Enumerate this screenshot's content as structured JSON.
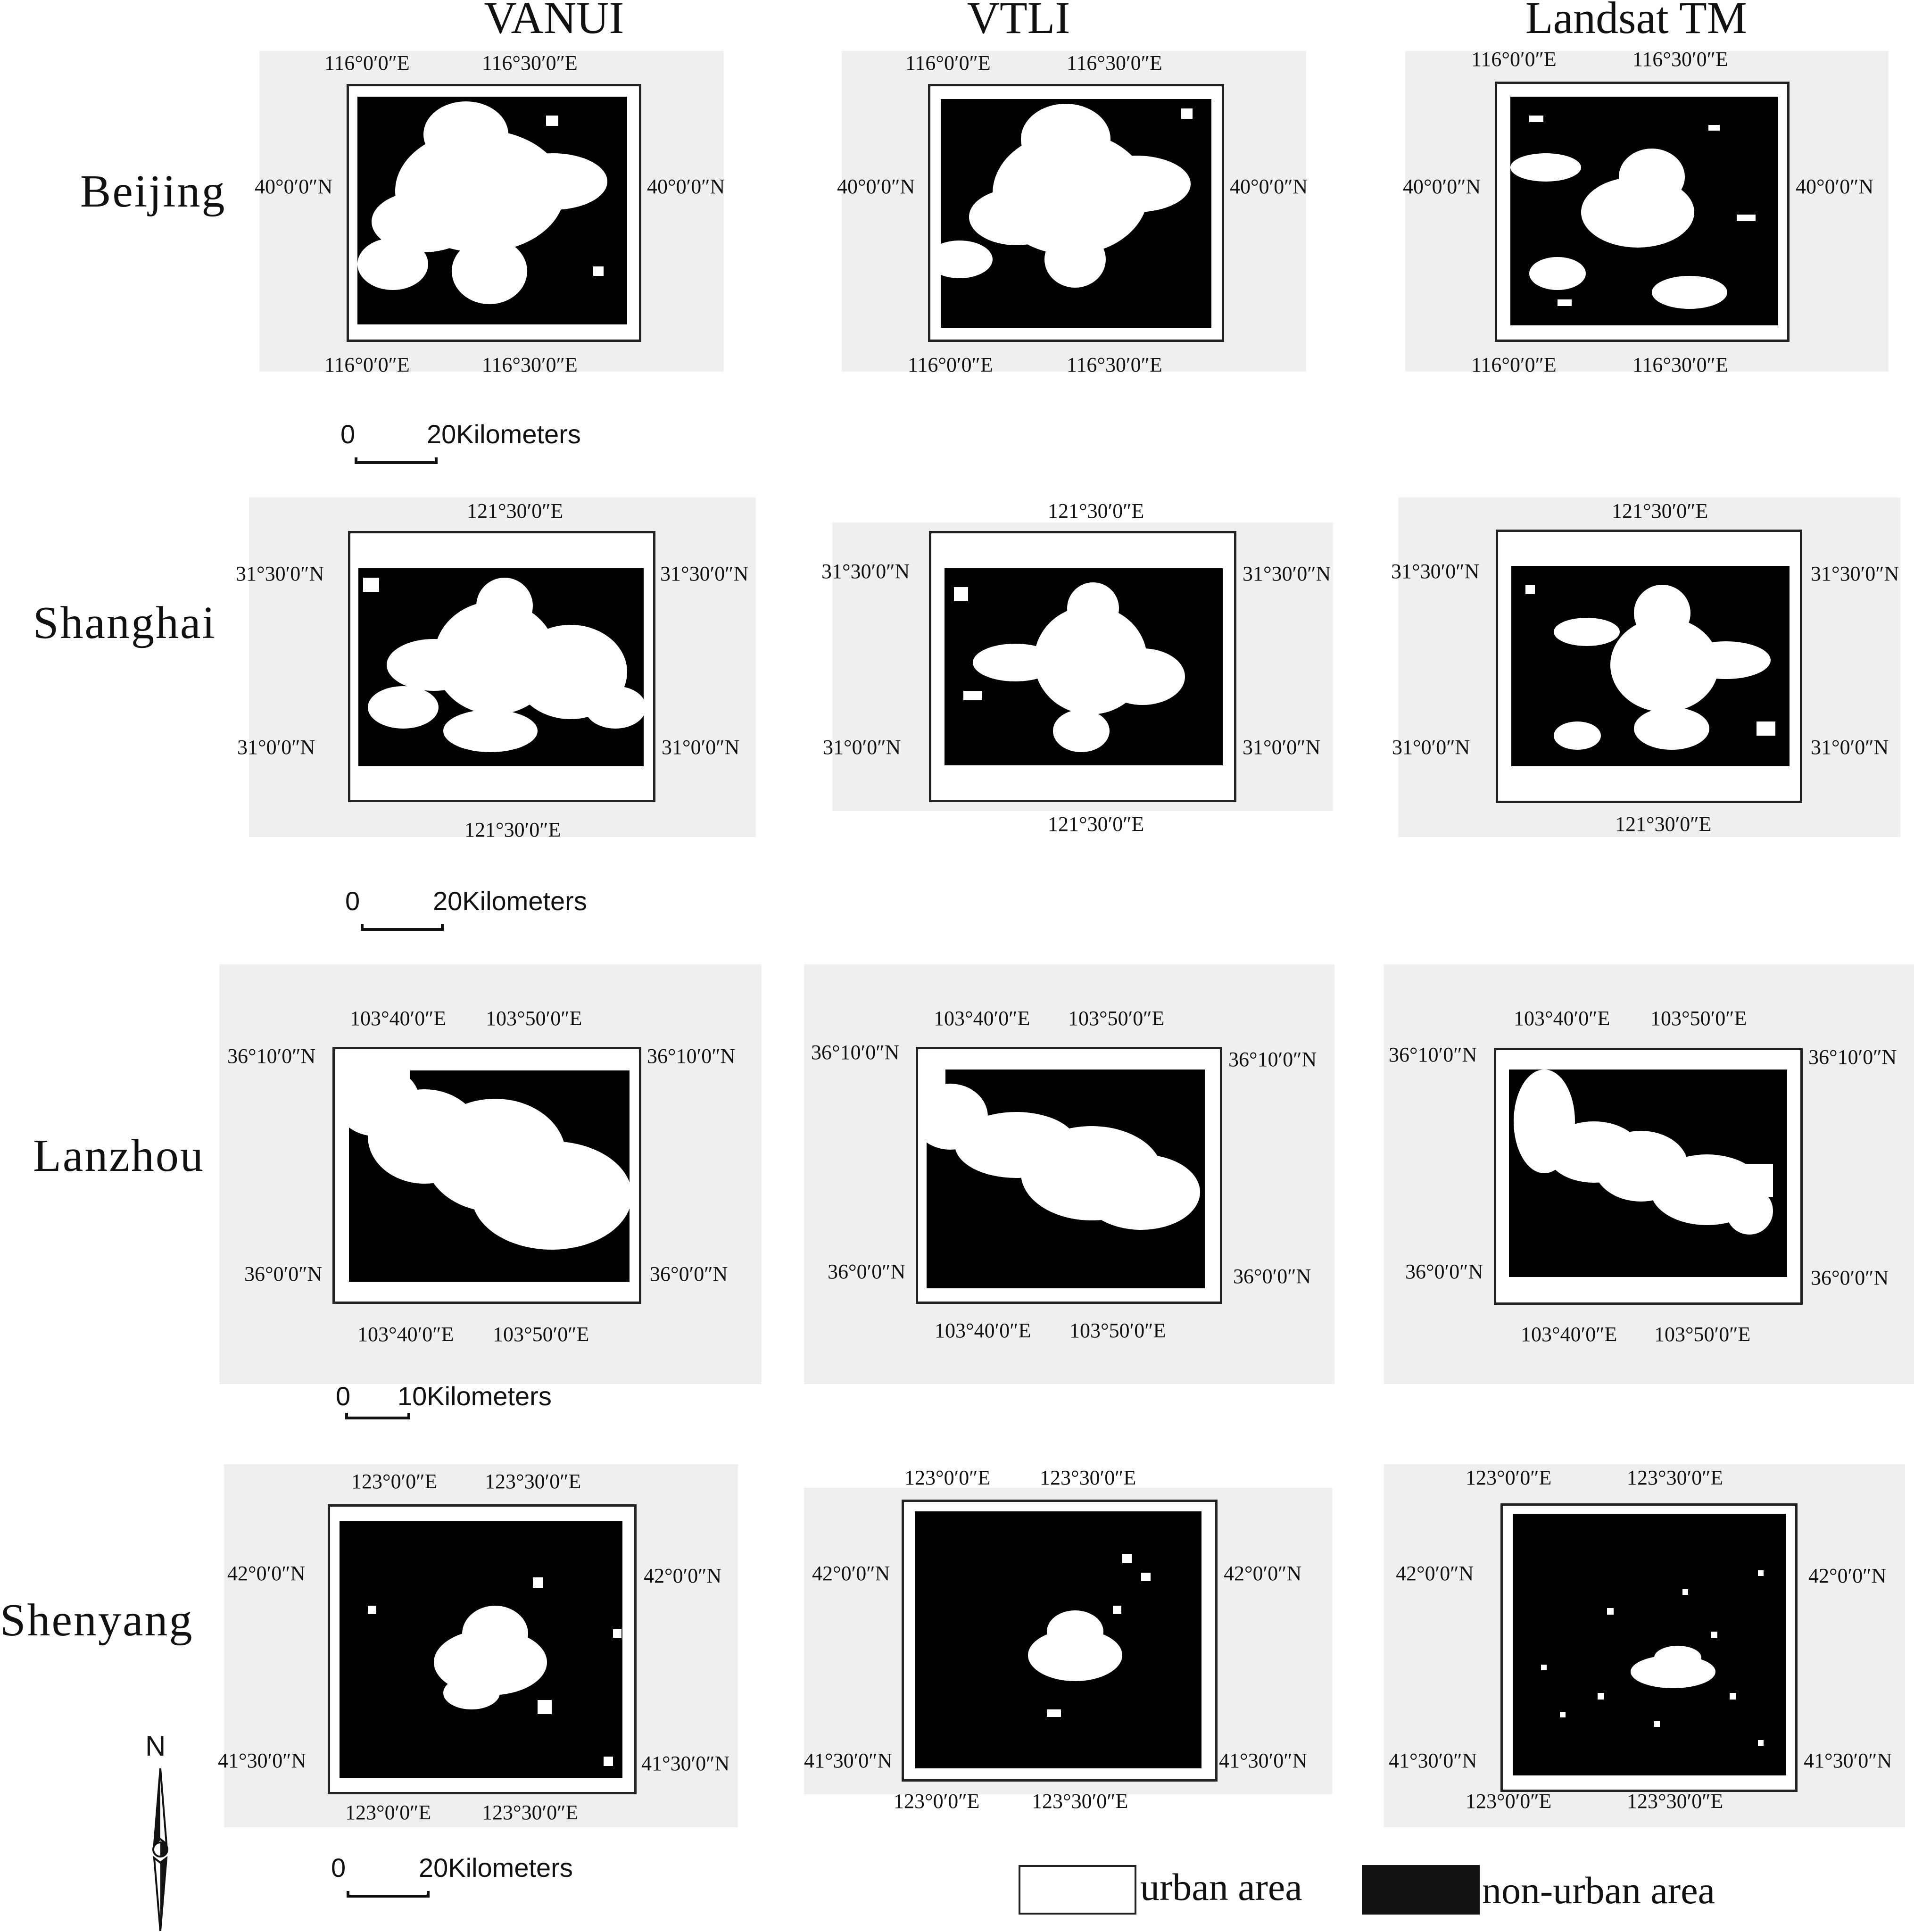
{
  "columns": [
    "VANUI",
    "VTLI",
    "Landsat TM"
  ],
  "cities": [
    {
      "name": "Beijing",
      "top_lon": [
        "116°0′0″E",
        "116°30′0″E"
      ],
      "bottom_lon": [
        "116°0′0″E",
        "116°30′0″E"
      ],
      "lat": [
        "40°0′0″N"
      ]
    },
    {
      "name": "Shanghai",
      "top_lon": [
        "121°30′0″E"
      ],
      "bottom_lon": [
        "121°30′0″E"
      ],
      "lat": [
        "31°30′0″N",
        "31°0′0″N"
      ]
    },
    {
      "name": "Lanzhou",
      "top_lon": [
        "103°40′0″E",
        "103°50′0″E"
      ],
      "bottom_lon": [
        "103°40′0″E",
        "103°50′0″E"
      ],
      "lat": [
        "36°10′0″N",
        "36°0′0″N"
      ]
    },
    {
      "name": "Shenyang",
      "top_lon": [
        "123°0′0″E",
        "123°30′0″E"
      ],
      "bottom_lon": [
        "123°0′0″E",
        "123°30′0″E"
      ],
      "lat": [
        "42°0′0″N",
        "41°30′0″N"
      ]
    }
  ],
  "scale_bars": [
    {
      "zero": "0",
      "label": "20Kilometers"
    },
    {
      "zero": "0",
      "label": "20Kilometers"
    },
    {
      "zero": "0",
      "label": "10Kilometers"
    },
    {
      "zero": "0",
      "label": "20Kilometers"
    }
  ],
  "legend": {
    "urban": "urban area",
    "non_urban": "non-urban area"
  },
  "north": "N",
  "colors": {
    "urban": "#ffffff",
    "non_urban": "#000000",
    "margin": "#efefef"
  }
}
